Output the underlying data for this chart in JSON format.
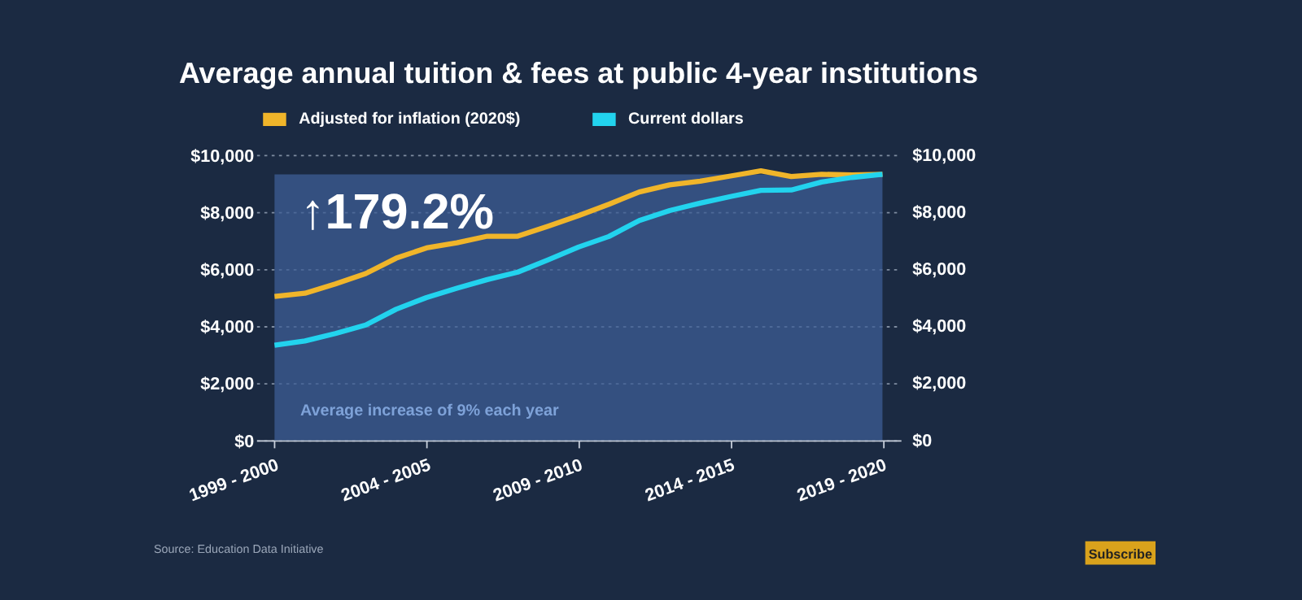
{
  "chart_data": {
    "type": "line",
    "title": "Average annual tuition & fees at public 4-year institutions",
    "categories": [
      "1999 - 2000",
      null,
      null,
      null,
      null,
      "2004 - 2005",
      null,
      null,
      null,
      null,
      "2009 - 2010",
      null,
      null,
      null,
      null,
      "2014 - 2015",
      null,
      null,
      null,
      null,
      "2019 - 2020"
    ],
    "series": [
      {
        "name": "Adjusted for inflation (2020$)",
        "color": "#f0b52a",
        "values": [
          5040,
          5150,
          5480,
          5840,
          6380,
          6740,
          6920,
          7150,
          7150,
          7500,
          7870,
          8270,
          8700,
          8950,
          9080,
          9260,
          9440,
          9240,
          9320,
          9300,
          9320
        ]
      },
      {
        "name": "Current dollars",
        "color": "#22d3ee",
        "values": [
          3330,
          3480,
          3740,
          4040,
          4590,
          5000,
          5330,
          5630,
          5890,
          6320,
          6770,
          7140,
          7700,
          8050,
          8310,
          8540,
          8760,
          8770,
          9050,
          9210,
          9320
        ]
      }
    ],
    "ylim": [
      0,
      10000
    ],
    "yticks": [
      {
        "value": 0,
        "label": "$0"
      },
      {
        "value": 2000,
        "label": "$2,000"
      },
      {
        "value": 4000,
        "label": "$4,000"
      },
      {
        "value": 6000,
        "label": "$6,000"
      },
      {
        "value": 8000,
        "label": "$8,000"
      },
      {
        "value": 10000,
        "label": "$10,000"
      }
    ],
    "y2lim": [
      0,
      10000
    ],
    "y2ticks": [
      {
        "value": 0,
        "label": "$0"
      },
      {
        "value": 2000,
        "label": "$2,000"
      },
      {
        "value": 4000,
        "label": "$4,000"
      },
      {
        "value": 6000,
        "label": "$6,000"
      },
      {
        "value": 8000,
        "label": "$8,000"
      },
      {
        "value": 10000,
        "label": "$10,000"
      }
    ],
    "bands": [
      {
        "axis": "y",
        "from": 0,
        "to": 9320,
        "color": "#3d5d96"
      }
    ],
    "grid": "y",
    "legend": "top",
    "marker": "none",
    "line_style": "solid",
    "annotations": [
      "↑179.2%",
      "Average increase of 9% each year",
      "Source: Education Data Initiative",
      "Subscribe"
    ]
  }
}
